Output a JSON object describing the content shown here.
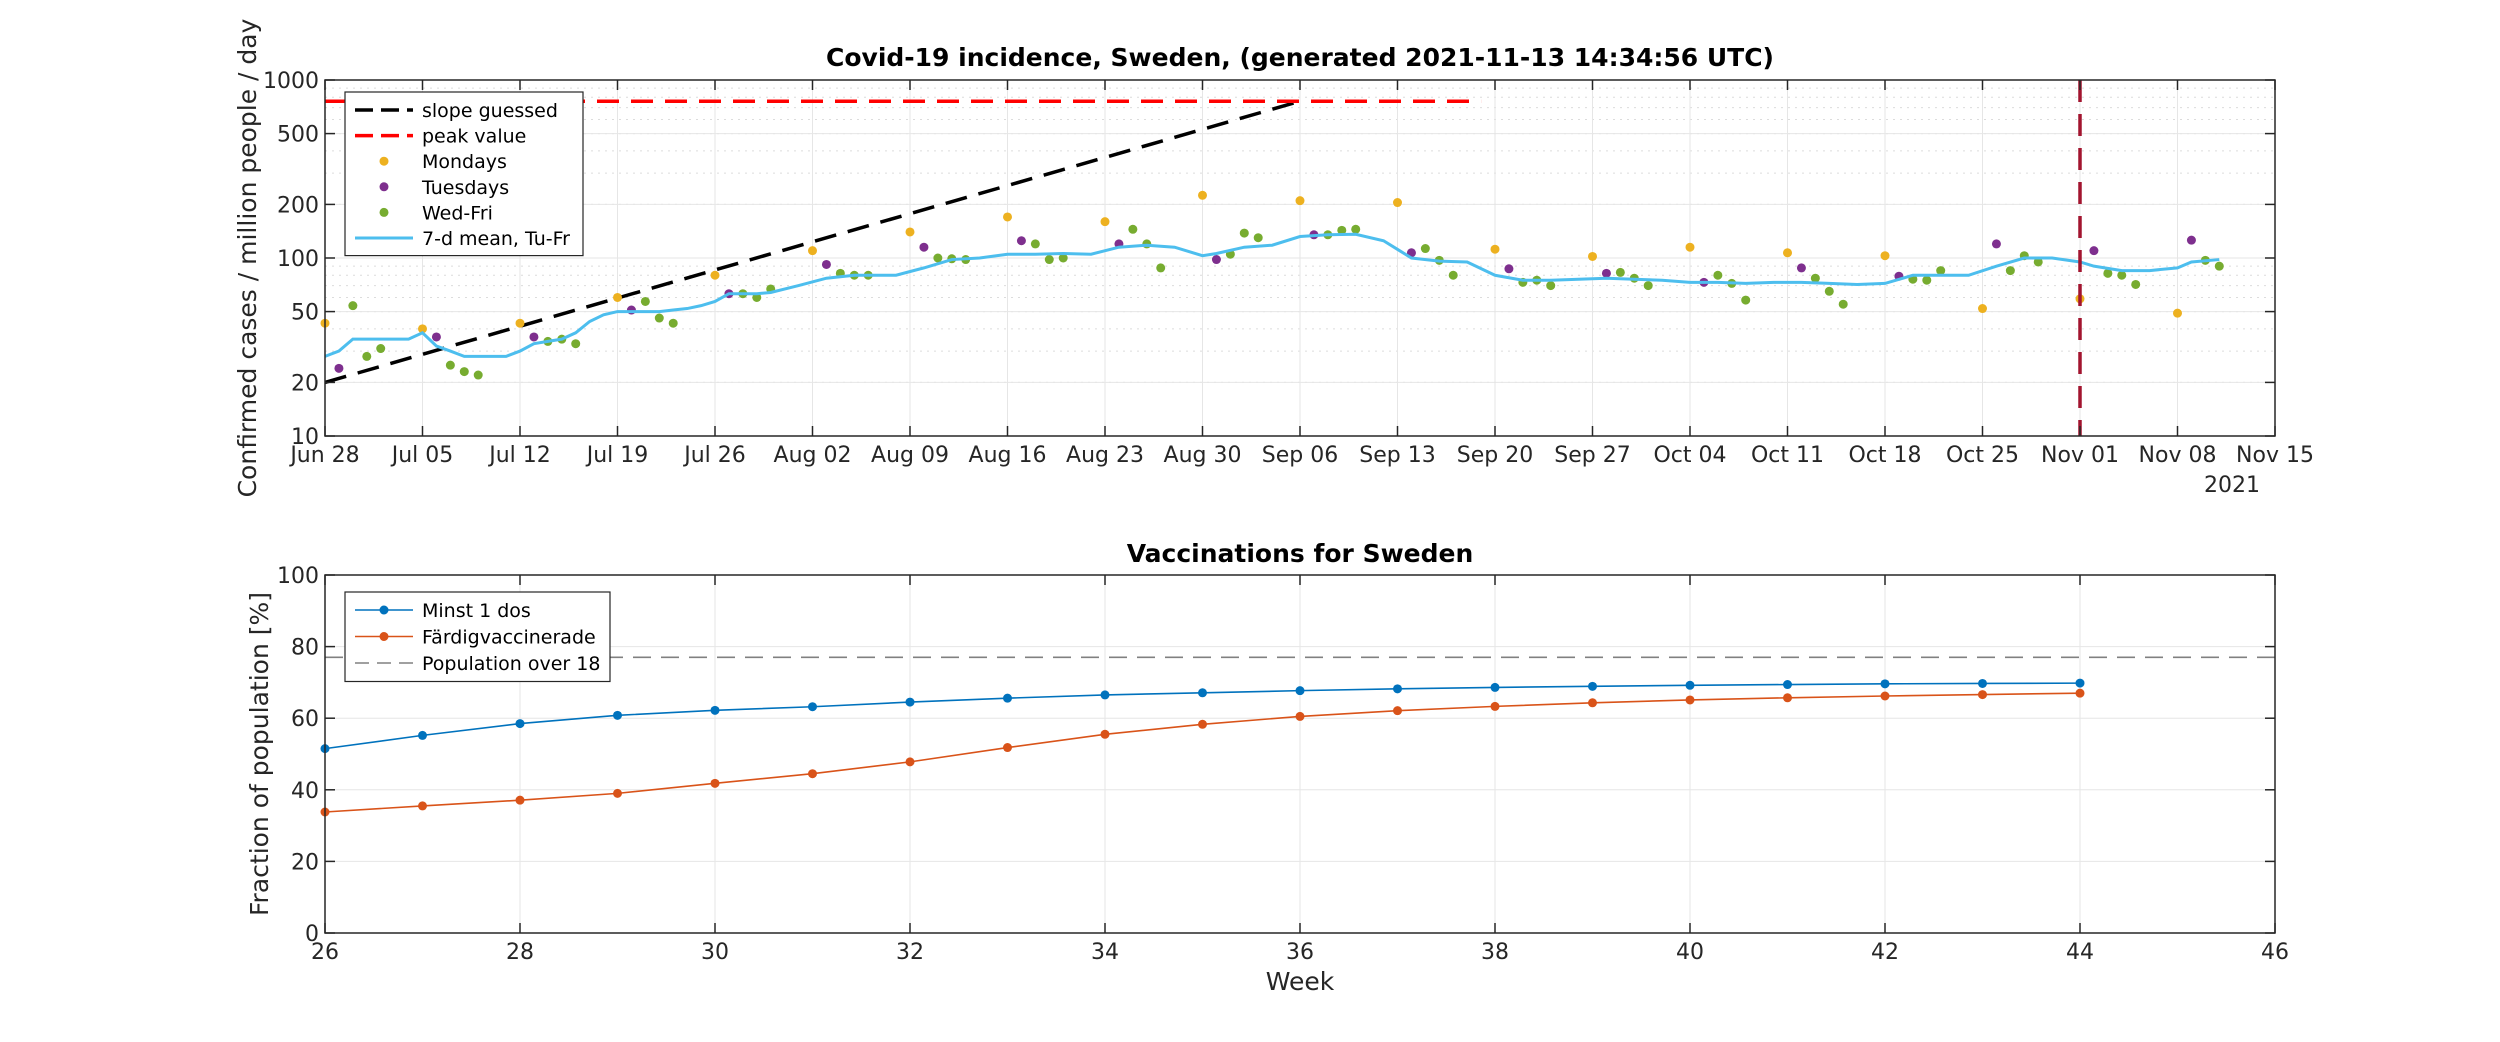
{
  "chart_data": [
    {
      "type": "scatter",
      "title": "Covid-19 incidence, Sweden, (generated 2021-11-13 14:34:56 UTC)",
      "ylabel": "Confirmed cases / million people / day",
      "xlabel": "",
      "y_scale": "log",
      "ylim": [
        10,
        1000
      ],
      "yticks": [
        10,
        20,
        50,
        100,
        200,
        500,
        1000
      ],
      "xlim": [
        "2021-06-28",
        "2021-11-15"
      ],
      "xticks": [
        {
          "date": "2021-06-28",
          "label": "Jun 28"
        },
        {
          "date": "2021-07-05",
          "label": "Jul 05"
        },
        {
          "date": "2021-07-12",
          "label": "Jul 12"
        },
        {
          "date": "2021-07-19",
          "label": "Jul 19"
        },
        {
          "date": "2021-07-26",
          "label": "Jul 26"
        },
        {
          "date": "2021-08-02",
          "label": "Aug 02"
        },
        {
          "date": "2021-08-09",
          "label": "Aug 09"
        },
        {
          "date": "2021-08-16",
          "label": "Aug 16"
        },
        {
          "date": "2021-08-23",
          "label": "Aug 23"
        },
        {
          "date": "2021-08-30",
          "label": "Aug 30"
        },
        {
          "date": "2021-09-06",
          "label": "Sep 06"
        },
        {
          "date": "2021-09-13",
          "label": "Sep 13"
        },
        {
          "date": "2021-09-20",
          "label": "Sep 20"
        },
        {
          "date": "2021-09-27",
          "label": "Sep 27"
        },
        {
          "date": "2021-10-04",
          "label": "Oct 04"
        },
        {
          "date": "2021-10-11",
          "label": "Oct 11"
        },
        {
          "date": "2021-10-18",
          "label": "Oct 18"
        },
        {
          "date": "2021-10-25",
          "label": "Oct 25"
        },
        {
          "date": "2021-11-01",
          "label": "Nov 01"
        },
        {
          "date": "2021-11-08",
          "label": "Nov 08"
        },
        {
          "date": "2021-11-15",
          "label": "Nov 15"
        }
      ],
      "year_label": "2021",
      "grid": true,
      "legend_position": "top-left",
      "vline": {
        "x": "2021-11-01",
        "color": "#a2142f",
        "style": "dashed"
      },
      "series": [
        {
          "name": "slope guessed",
          "kind": "line",
          "style": "dashed",
          "color": "#000000",
          "x": [
            "2021-06-28",
            "2021-09-06"
          ],
          "y": [
            20,
            760
          ]
        },
        {
          "name": "peak value",
          "kind": "line",
          "style": "dashed",
          "color": "#ff0000",
          "x": [
            "2021-06-28",
            "2021-09-19"
          ],
          "y": [
            760,
            760
          ]
        },
        {
          "name": "Mondays",
          "kind": "scatter",
          "color": "#edb120",
          "x": [
            "2021-06-28",
            "2021-07-05",
            "2021-07-12",
            "2021-07-19",
            "2021-07-26",
            "2021-08-02",
            "2021-08-09",
            "2021-08-16",
            "2021-08-23",
            "2021-08-30",
            "2021-09-06",
            "2021-09-13",
            "2021-09-20",
            "2021-09-27",
            "2021-10-04",
            "2021-10-11",
            "2021-10-18",
            "2021-10-25",
            "2021-11-01",
            "2021-11-08"
          ],
          "y": [
            43,
            40,
            43,
            60,
            80,
            110,
            140,
            170,
            160,
            225,
            210,
            205,
            112,
            102,
            115,
            107,
            103,
            52,
            59,
            49
          ]
        },
        {
          "name": "Tuesdays",
          "kind": "scatter",
          "color": "#7e2f8e",
          "x": [
            "2021-06-29",
            "2021-07-06",
            "2021-07-13",
            "2021-07-20",
            "2021-07-27",
            "2021-08-03",
            "2021-08-10",
            "2021-08-17",
            "2021-08-24",
            "2021-08-31",
            "2021-09-07",
            "2021-09-14",
            "2021-09-21",
            "2021-09-28",
            "2021-10-05",
            "2021-10-12",
            "2021-10-19",
            "2021-10-26",
            "2021-11-02",
            "2021-11-09"
          ],
          "y": [
            24,
            36,
            36,
            51,
            63,
            92,
            115,
            125,
            120,
            98,
            135,
            107,
            87,
            82,
            73,
            88,
            79,
            120,
            110,
            126
          ]
        },
        {
          "name": "Wed-Fri",
          "kind": "scatter",
          "color": "#77ac30",
          "x": [
            "2021-06-30",
            "2021-07-01",
            "2021-07-02",
            "2021-07-07",
            "2021-07-08",
            "2021-07-09",
            "2021-07-14",
            "2021-07-15",
            "2021-07-16",
            "2021-07-21",
            "2021-07-22",
            "2021-07-23",
            "2021-07-28",
            "2021-07-29",
            "2021-07-30",
            "2021-08-04",
            "2021-08-05",
            "2021-08-06",
            "2021-08-11",
            "2021-08-12",
            "2021-08-13",
            "2021-08-18",
            "2021-08-19",
            "2021-08-20",
            "2021-08-25",
            "2021-08-26",
            "2021-08-27",
            "2021-09-01",
            "2021-09-02",
            "2021-09-03",
            "2021-09-08",
            "2021-09-09",
            "2021-09-10",
            "2021-09-15",
            "2021-09-16",
            "2021-09-17",
            "2021-09-22",
            "2021-09-23",
            "2021-09-24",
            "2021-09-29",
            "2021-09-30",
            "2021-10-01",
            "2021-10-06",
            "2021-10-07",
            "2021-10-08",
            "2021-10-13",
            "2021-10-14",
            "2021-10-15",
            "2021-10-20",
            "2021-10-21",
            "2021-10-22",
            "2021-10-27",
            "2021-10-28",
            "2021-10-29",
            "2021-11-03",
            "2021-11-04",
            "2021-11-05",
            "2021-11-10",
            "2021-11-11"
          ],
          "y": [
            54,
            28,
            31,
            25,
            23,
            22,
            34,
            35,
            33,
            57,
            46,
            43,
            63,
            60,
            67,
            82,
            80,
            80,
            100,
            99,
            98,
            120,
            98,
            100,
            145,
            120,
            88,
            105,
            138,
            130,
            135,
            143,
            145,
            113,
            97,
            80,
            73,
            75,
            70,
            83,
            77,
            70,
            80,
            72,
            58,
            77,
            65,
            55,
            76,
            75,
            85,
            85,
            103,
            95,
            82,
            80,
            71,
            97,
            90
          ]
        },
        {
          "name": "7-d mean, Tu-Fr",
          "kind": "line",
          "style": "solid",
          "color": "#4dbeee",
          "x": [
            "2021-06-28",
            "2021-06-29",
            "2021-06-30",
            "2021-07-01",
            "2021-07-02",
            "2021-07-03",
            "2021-07-04",
            "2021-07-05",
            "2021-07-06",
            "2021-07-07",
            "2021-07-08",
            "2021-07-09",
            "2021-07-10",
            "2021-07-11",
            "2021-07-12",
            "2021-07-13",
            "2021-07-14",
            "2021-07-15",
            "2021-07-16",
            "2021-07-17",
            "2021-07-18",
            "2021-07-19",
            "2021-07-20",
            "2021-07-21",
            "2021-07-22",
            "2021-07-23",
            "2021-07-24",
            "2021-07-25",
            "2021-07-26",
            "2021-07-27",
            "2021-07-28",
            "2021-07-29",
            "2021-07-30",
            "2021-08-01",
            "2021-08-03",
            "2021-08-05",
            "2021-08-06",
            "2021-08-08",
            "2021-08-10",
            "2021-08-12",
            "2021-08-14",
            "2021-08-16",
            "2021-08-18",
            "2021-08-20",
            "2021-08-22",
            "2021-08-24",
            "2021-08-26",
            "2021-08-28",
            "2021-08-30",
            "2021-08-31",
            "2021-09-02",
            "2021-09-04",
            "2021-09-06",
            "2021-09-08",
            "2021-09-10",
            "2021-09-12",
            "2021-09-14",
            "2021-09-16",
            "2021-09-18",
            "2021-09-20",
            "2021-09-22",
            "2021-09-24",
            "2021-09-26",
            "2021-09-28",
            "2021-09-30",
            "2021-10-02",
            "2021-10-04",
            "2021-10-06",
            "2021-10-08",
            "2021-10-10",
            "2021-10-12",
            "2021-10-14",
            "2021-10-16",
            "2021-10-18",
            "2021-10-20",
            "2021-10-22",
            "2021-10-24",
            "2021-10-26",
            "2021-10-28",
            "2021-10-30",
            "2021-11-01",
            "2021-11-02",
            "2021-11-04",
            "2021-11-06",
            "2021-11-08",
            "2021-11-09",
            "2021-11-11"
          ],
          "y": [
            28,
            30,
            35,
            35,
            35,
            35,
            35,
            38,
            32,
            30,
            28,
            28,
            28,
            28,
            30,
            33,
            34,
            35,
            38,
            44,
            48,
            50,
            50,
            50,
            50,
            51,
            52,
            54,
            57,
            63,
            63,
            63,
            64,
            70,
            77,
            80,
            80,
            80,
            88,
            98,
            100,
            105,
            105,
            106,
            105,
            115,
            118,
            115,
            103,
            106,
            115,
            118,
            132,
            135,
            136,
            125,
            100,
            96,
            95,
            80,
            75,
            75,
            76,
            77,
            76,
            75,
            73,
            73,
            72,
            73,
            73,
            72,
            71,
            72,
            80,
            80,
            80,
            90,
            100,
            100,
            95,
            90,
            85,
            85,
            88,
            95,
            98
          ]
        }
      ]
    },
    {
      "type": "line",
      "title": "Vaccinations for Sweden",
      "xlabel": "Week",
      "ylabel": "Fraction of population [%]",
      "xlim": [
        26,
        46
      ],
      "xticks": [
        26,
        28,
        30,
        32,
        34,
        36,
        38,
        40,
        42,
        44,
        46
      ],
      "ylim": [
        0,
        100
      ],
      "yticks": [
        0,
        20,
        40,
        60,
        80,
        100
      ],
      "grid": true,
      "legend_position": "top-left",
      "series": [
        {
          "name": "Minst 1 dos",
          "color": "#0072bd",
          "marker": "dot",
          "x": [
            26,
            27,
            28,
            29,
            30,
            31,
            32,
            33,
            34,
            35,
            36,
            37,
            38,
            39,
            40,
            41,
            42,
            43,
            44
          ],
          "y": [
            51.5,
            55.2,
            58.5,
            60.8,
            62.2,
            63.2,
            64.5,
            65.6,
            66.5,
            67.1,
            67.7,
            68.2,
            68.6,
            68.9,
            69.2,
            69.4,
            69.6,
            69.7,
            69.8
          ]
        },
        {
          "name": "Färdigvaccinerade",
          "color": "#d95319",
          "marker": "dot",
          "x": [
            26,
            27,
            28,
            29,
            30,
            31,
            32,
            33,
            34,
            35,
            36,
            37,
            38,
            39,
            40,
            41,
            42,
            43,
            44
          ],
          "y": [
            33.8,
            35.5,
            37.1,
            39.0,
            41.8,
            44.5,
            47.8,
            51.8,
            55.5,
            58.3,
            60.5,
            62.1,
            63.3,
            64.3,
            65.1,
            65.7,
            66.2,
            66.6,
            67.0
          ]
        },
        {
          "name": "Population over 18",
          "color": "#808080",
          "style": "dashed",
          "x": [
            26,
            46
          ],
          "y": [
            77,
            77
          ]
        }
      ]
    }
  ]
}
